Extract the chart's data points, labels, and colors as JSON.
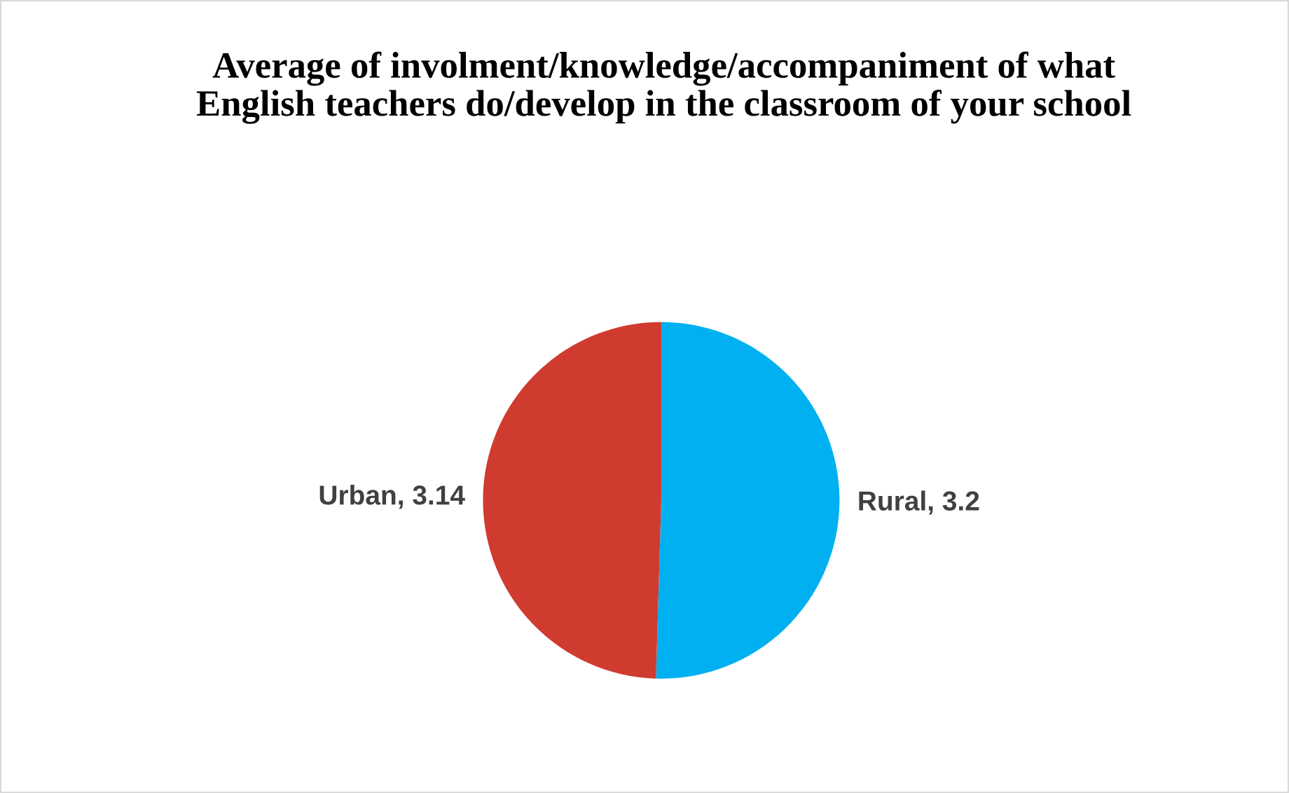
{
  "chart_data": {
    "type": "pie",
    "title": "Average of involment/knowledge/accompaniment of what English teachers do/develop in the classroom of your school",
    "categories": [
      "Rural",
      "Urban"
    ],
    "values": [
      3.2,
      3.14
    ],
    "colors": [
      "#00b0f0",
      "#cf3b2f"
    ],
    "value_labels": [
      ", 3.2",
      ", 3.14"
    ],
    "legend": false
  }
}
